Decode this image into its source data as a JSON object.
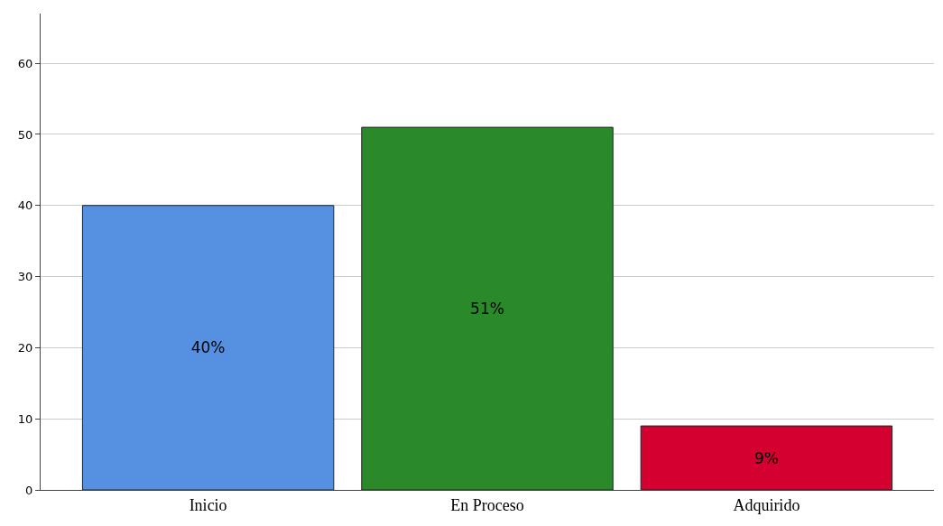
{
  "chart_data": {
    "type": "bar",
    "categories": [
      "Inicio",
      "En Proceso",
      "Adquirido"
    ],
    "values": [
      40,
      51,
      9
    ],
    "colors": [
      "#5591e0",
      "#2a8a2a",
      "#d4002f"
    ],
    "value_labels": [
      "40%",
      "51%",
      "9%"
    ],
    "ylim": [
      0,
      67
    ],
    "yticks": [
      0,
      10,
      20,
      30,
      40,
      50,
      60
    ],
    "grid": "y"
  }
}
